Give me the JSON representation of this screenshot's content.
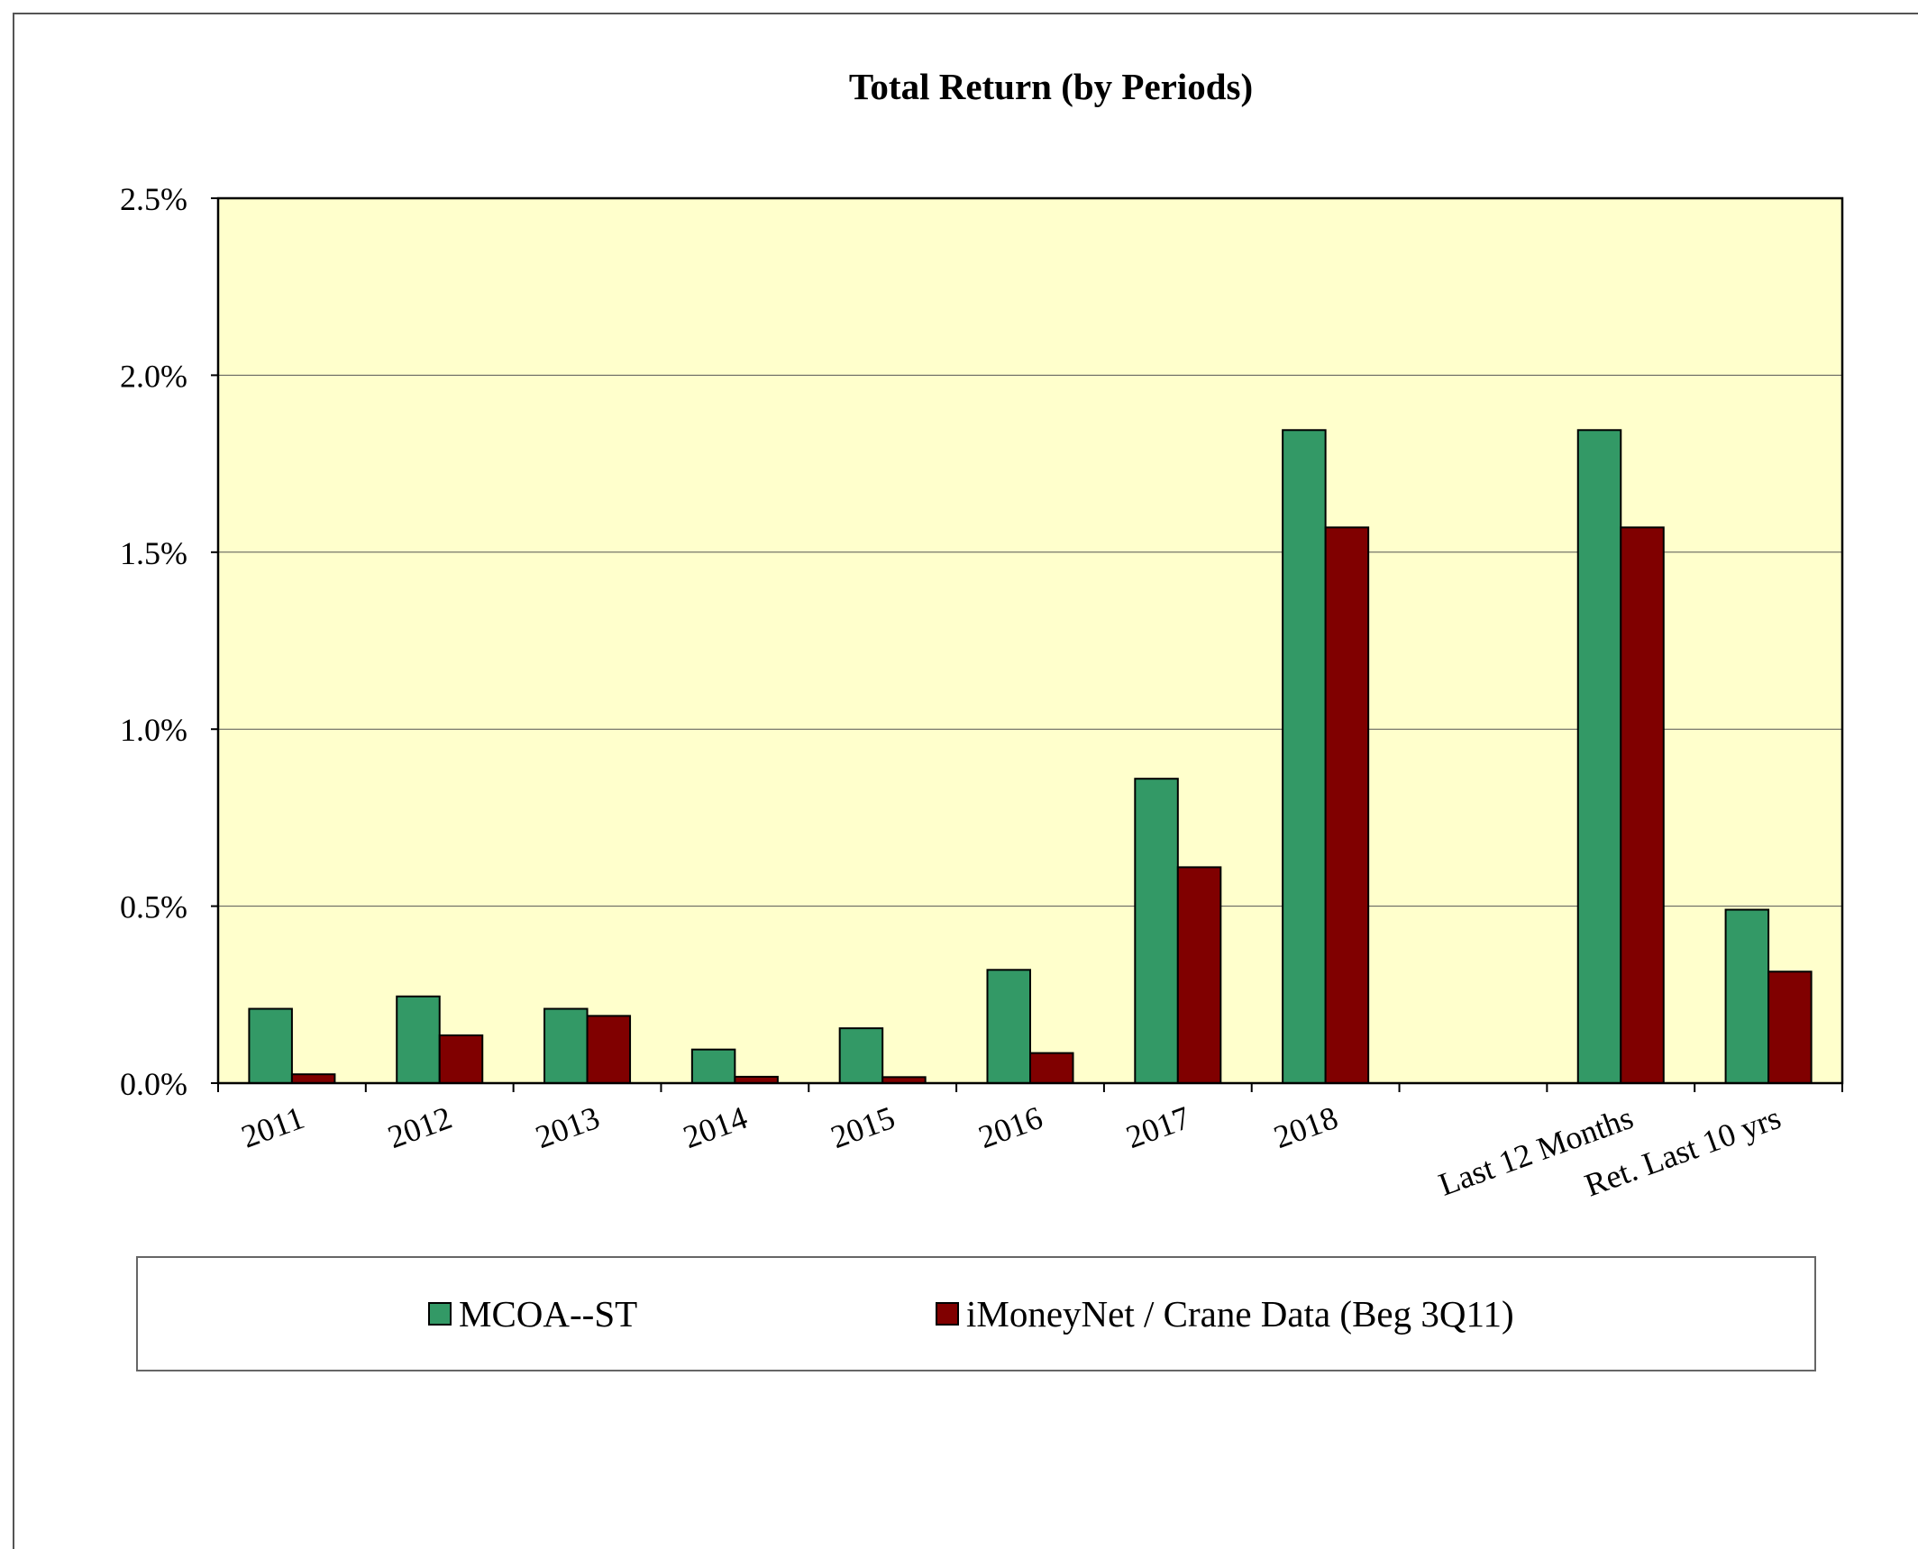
{
  "chart_data": {
    "type": "bar",
    "title": "Total Return (by Periods)",
    "xlabel": "",
    "ylabel": "",
    "categories": [
      "2011",
      "2012",
      "2013",
      "2014",
      "2015",
      "2016",
      "2017",
      "2018",
      "",
      "Last 12 Months",
      "Ret. Last 10 yrs"
    ],
    "series": [
      {
        "name": "MCOA--ST",
        "color": "#339966",
        "values": [
          0.21,
          0.245,
          0.21,
          0.095,
          0.155,
          0.32,
          0.86,
          1.845,
          null,
          1.845,
          0.49
        ]
      },
      {
        "name": "iMoneyNet / Crane Data (Beg 3Q11)",
        "color": "#800000",
        "values": [
          0.025,
          0.135,
          0.19,
          0.018,
          0.017,
          0.085,
          0.61,
          1.57,
          null,
          1.57,
          0.315
        ]
      }
    ],
    "ylim": [
      0,
      2.5
    ],
    "yticks": [
      "0.0%",
      "0.5%",
      "1.0%",
      "1.5%",
      "2.0%",
      "2.5%"
    ],
    "grid": true,
    "legend_position": "bottom",
    "plot_background": "#ffffcc"
  }
}
